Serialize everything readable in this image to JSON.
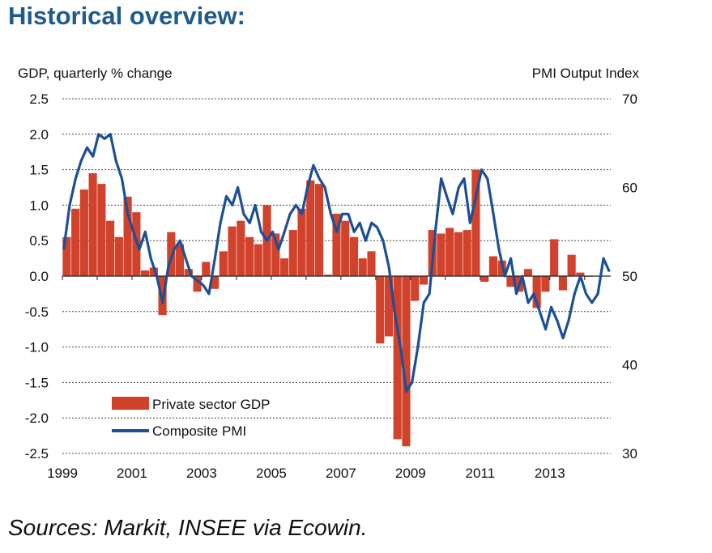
{
  "page": {
    "title": "Historical overview:",
    "sources": "Sources: Markit, INSEE via Ecowin."
  },
  "chart_data": {
    "type": "bar",
    "left_axis_label": "GDP, quarterly % change",
    "right_axis_label": "PMI Output  Index",
    "left_ylim": [
      -2.5,
      2.5
    ],
    "left_ticks": [
      "2.5",
      "2.0",
      "1.5",
      "1.0",
      "0.5",
      "0.0",
      "-0.5",
      "-1.0",
      "-1.5",
      "-2.0",
      "-2.5"
    ],
    "right_ylim": [
      30,
      70
    ],
    "right_ticks": [
      "70",
      "60",
      "50",
      "40",
      "30"
    ],
    "xlim": [
      1999.0,
      2014.75
    ],
    "x_ticks": [
      "1999",
      "2001",
      "2003",
      "2005",
      "2007",
      "2009",
      "2011",
      "2013"
    ],
    "grid": "horizontal dashed",
    "legend_position": "bottom-left",
    "colors": {
      "bars": "#d0422c",
      "line": "#1c4f96",
      "grid": "#444444"
    },
    "series": [
      {
        "name": "Private sector GDP",
        "kind": "bar",
        "axis": "left",
        "x": [
          1999.125,
          1999.375,
          1999.625,
          1999.875,
          2000.125,
          2000.375,
          2000.625,
          2000.875,
          2001.125,
          2001.375,
          2001.625,
          2001.875,
          2002.125,
          2002.375,
          2002.625,
          2002.875,
          2003.125,
          2003.375,
          2003.625,
          2003.875,
          2004.125,
          2004.375,
          2004.625,
          2004.875,
          2005.125,
          2005.375,
          2005.625,
          2005.875,
          2006.125,
          2006.375,
          2006.625,
          2006.875,
          2007.125,
          2007.375,
          2007.625,
          2007.875,
          2008.125,
          2008.375,
          2008.625,
          2008.875,
          2009.125,
          2009.375,
          2009.625,
          2009.875,
          2010.125,
          2010.375,
          2010.625,
          2010.875,
          2011.125,
          2011.375,
          2011.625,
          2011.875,
          2012.125,
          2012.375,
          2012.625,
          2012.875,
          2013.125,
          2013.375,
          2013.625,
          2013.875,
          2014.125
        ],
        "values": [
          0.55,
          0.95,
          1.22,
          1.45,
          1.3,
          0.78,
          0.55,
          1.12,
          0.9,
          0.08,
          0.12,
          -0.55,
          0.62,
          0.45,
          0.1,
          -0.22,
          0.2,
          -0.18,
          0.35,
          0.7,
          0.78,
          0.55,
          0.45,
          1.0,
          0.6,
          0.25,
          0.65,
          0.95,
          1.35,
          1.3,
          0.02,
          0.88,
          0.78,
          0.55,
          0.25,
          0.35,
          -0.95,
          -0.85,
          -2.3,
          -2.4,
          -0.35,
          -0.12,
          0.65,
          0.6,
          0.68,
          0.62,
          0.65,
          1.5,
          -0.08,
          0.28,
          0.22,
          -0.15,
          -0.22,
          0.1,
          -0.45,
          -0.22,
          0.52,
          -0.2,
          0.3,
          0.05,
          0.0
        ]
      },
      {
        "name": "Composite PMI",
        "kind": "line",
        "axis": "right",
        "x": [
          1999.04,
          1999.21,
          1999.38,
          1999.54,
          1999.71,
          1999.88,
          2000.04,
          2000.21,
          2000.38,
          2000.54,
          2000.71,
          2000.88,
          2001.04,
          2001.21,
          2001.38,
          2001.54,
          2001.71,
          2001.88,
          2002.04,
          2002.21,
          2002.38,
          2002.54,
          2002.71,
          2002.88,
          2003.04,
          2003.21,
          2003.38,
          2003.54,
          2003.71,
          2003.88,
          2004.04,
          2004.21,
          2004.38,
          2004.54,
          2004.71,
          2004.88,
          2005.04,
          2005.21,
          2005.38,
          2005.54,
          2005.71,
          2005.88,
          2006.04,
          2006.21,
          2006.38,
          2006.54,
          2006.71,
          2006.88,
          2007.04,
          2007.21,
          2007.38,
          2007.54,
          2007.71,
          2007.88,
          2008.04,
          2008.21,
          2008.38,
          2008.54,
          2008.71,
          2008.88,
          2009.04,
          2009.21,
          2009.38,
          2009.54,
          2009.71,
          2009.88,
          2010.04,
          2010.21,
          2010.38,
          2010.54,
          2010.71,
          2010.88,
          2011.04,
          2011.21,
          2011.38,
          2011.54,
          2011.71,
          2011.88,
          2012.04,
          2012.21,
          2012.38,
          2012.54,
          2012.71,
          2012.88,
          2013.04,
          2013.21,
          2013.38,
          2013.54,
          2013.71,
          2013.88,
          2014.04,
          2014.21,
          2014.38,
          2014.54,
          2014.71
        ],
        "values": [
          53,
          58,
          61,
          63,
          64.5,
          63.5,
          66,
          65.5,
          66,
          63,
          61,
          57,
          55,
          53,
          55,
          52,
          50,
          47,
          51,
          53,
          54,
          52,
          50,
          49.5,
          49,
          48,
          52,
          56,
          59,
          58,
          60,
          57,
          56,
          58,
          55,
          54,
          55,
          53,
          55,
          57,
          58,
          57,
          60,
          62.5,
          61,
          60,
          57,
          55,
          57,
          57,
          55,
          56,
          54,
          56,
          55.5,
          54,
          51,
          46,
          42,
          37,
          38,
          42,
          47,
          48,
          55,
          61,
          59,
          57,
          60,
          61,
          56,
          59,
          62,
          61,
          57,
          53,
          50,
          52,
          48,
          50,
          47,
          48,
          46,
          44,
          46.5,
          45,
          43,
          45,
          48,
          50,
          48,
          47,
          48,
          52,
          50.5
        ]
      }
    ]
  }
}
